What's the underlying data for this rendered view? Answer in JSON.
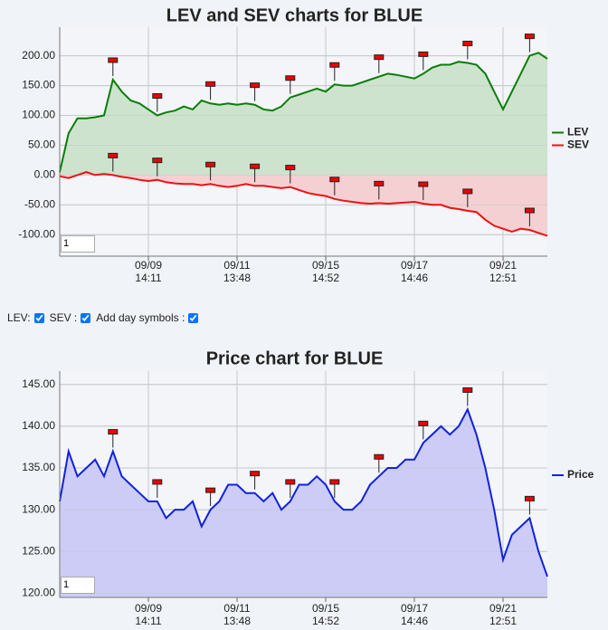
{
  "chart_data": [
    {
      "type": "area",
      "title": "LEV and SEV charts for BLUE",
      "input_value": "1",
      "x": [
        0,
        2,
        4,
        6,
        8,
        10,
        12,
        14,
        16,
        18,
        20,
        22,
        24,
        26,
        28,
        30,
        32,
        34,
        36,
        38,
        40,
        42,
        44,
        46,
        48,
        50,
        52,
        54,
        56,
        58,
        60,
        62,
        64,
        66,
        68,
        70,
        72,
        74,
        76,
        78,
        80,
        82,
        84,
        86,
        88,
        90,
        92,
        94,
        96,
        98,
        100,
        102,
        104,
        106,
        108,
        110
      ],
      "series": [
        {
          "name": "LEV",
          "color": "#0a7d0a",
          "fill": "#cde3cd",
          "values": [
            5,
            70,
            95,
            95,
            97,
            100,
            160,
            140,
            125,
            120,
            110,
            100,
            105,
            108,
            115,
            110,
            125,
            120,
            118,
            120,
            118,
            120,
            118,
            110,
            108,
            115,
            130,
            135,
            140,
            145,
            140,
            152,
            150,
            150,
            155,
            160,
            165,
            170,
            168,
            165,
            162,
            170,
            180,
            185,
            185,
            190,
            188,
            185,
            170,
            140,
            110,
            140,
            170,
            200,
            205,
            195
          ]
        },
        {
          "name": "SEV",
          "color": "#ee1111",
          "fill": "#f4d0d3",
          "values": [
            -2,
            -5,
            0,
            5,
            0,
            2,
            0,
            -3,
            -5,
            -8,
            -10,
            -8,
            -12,
            -14,
            -15,
            -15,
            -17,
            -15,
            -18,
            -20,
            -18,
            -15,
            -18,
            -18,
            -20,
            -22,
            -20,
            -25,
            -30,
            -33,
            -35,
            -40,
            -43,
            -45,
            -47,
            -48,
            -47,
            -48,
            -47,
            -46,
            -45,
            -48,
            -50,
            -50,
            -55,
            -57,
            -60,
            -62,
            -75,
            -85,
            -90,
            -95,
            -90,
            -92,
            -97,
            -102
          ]
        }
      ],
      "day_symbols": [
        12,
        22,
        34,
        44,
        52,
        62,
        72,
        82,
        92,
        106
      ],
      "xlim": [
        0,
        110
      ],
      "xticks": [
        {
          "value": 20,
          "label": [
            "09/09",
            "14:11"
          ]
        },
        {
          "value": 40,
          "label": [
            "09/11",
            "13:48"
          ]
        },
        {
          "value": 60,
          "label": [
            "09/15",
            "14:52"
          ]
        },
        {
          "value": 80,
          "label": [
            "09/17",
            "14:46"
          ]
        },
        {
          "value": 100,
          "label": [
            "09/21",
            "12:51"
          ]
        }
      ],
      "ylim": [
        -136,
        248
      ],
      "yticks": [
        {
          "value": -100,
          "label": "-100.00"
        },
        {
          "value": -50,
          "label": "-50.00"
        },
        {
          "value": 0,
          "label": "0.00"
        },
        {
          "value": 50,
          "label": "50.00"
        },
        {
          "value": 100,
          "label": "100.00"
        },
        {
          "value": 150,
          "label": "150.00"
        },
        {
          "value": 200,
          "label": "200.00"
        }
      ],
      "grid": true,
      "legend": "right"
    },
    {
      "type": "area",
      "title": "Price chart for BLUE",
      "input_value": "1",
      "x": [
        0,
        2,
        4,
        6,
        8,
        10,
        12,
        14,
        16,
        18,
        20,
        22,
        24,
        26,
        28,
        30,
        32,
        34,
        36,
        38,
        40,
        42,
        44,
        46,
        48,
        50,
        52,
        54,
        56,
        58,
        60,
        62,
        64,
        66,
        68,
        70,
        72,
        74,
        76,
        78,
        80,
        82,
        84,
        86,
        88,
        90,
        92,
        94,
        96,
        98,
        100,
        102,
        104,
        106,
        108,
        110
      ],
      "series": [
        {
          "name": "Price",
          "color": "#1122dd",
          "fill": "#ccccf6",
          "values": [
            131,
            137,
            134,
            135,
            136,
            134,
            137,
            134,
            133,
            132,
            131,
            131,
            129,
            130,
            130,
            131,
            128,
            130,
            131,
            133,
            133,
            132,
            132,
            131,
            132,
            130,
            131,
            133,
            133,
            134,
            133,
            131,
            130,
            130,
            131,
            133,
            134,
            135,
            135,
            136,
            136,
            138,
            139,
            140,
            139,
            140,
            142,
            139,
            135,
            130,
            124,
            127,
            128,
            129,
            125,
            122
          ]
        }
      ],
      "day_symbols": [
        12,
        22,
        34,
        44,
        52,
        62,
        72,
        82,
        92,
        106
      ],
      "xlim": [
        0,
        110
      ],
      "xticks": [
        {
          "value": 20,
          "label": [
            "09/09",
            "14:11"
          ]
        },
        {
          "value": 40,
          "label": [
            "09/11",
            "13:48"
          ]
        },
        {
          "value": 60,
          "label": [
            "09/15",
            "14:52"
          ]
        },
        {
          "value": 80,
          "label": [
            "09/17",
            "14:46"
          ]
        },
        {
          "value": 100,
          "label": [
            "09/21",
            "12:51"
          ]
        }
      ],
      "ylim": [
        119.5,
        146.6
      ],
      "yticks": [
        {
          "value": 120,
          "label": "120.00"
        },
        {
          "value": 125,
          "label": "125.00"
        },
        {
          "value": 130,
          "label": "130.00"
        },
        {
          "value": 135,
          "label": "135.00"
        },
        {
          "value": 140,
          "label": "140.00"
        },
        {
          "value": 145,
          "label": "145.00"
        }
      ],
      "grid": true,
      "legend": "right"
    }
  ],
  "controls": {
    "labels": [
      "LEV:",
      "SEV :",
      "Add day symbols :"
    ]
  }
}
